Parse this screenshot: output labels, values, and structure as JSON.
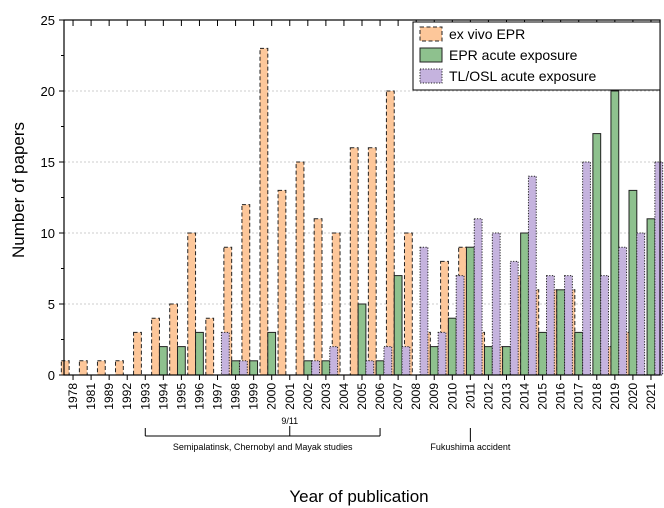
{
  "chart_data": {
    "type": "bar",
    "xlabel": "Year of publication",
    "ylabel": "Number of papers",
    "ylim": [
      0,
      25
    ],
    "yticks": [
      0,
      5,
      10,
      15,
      20,
      25
    ],
    "grid": "horizontal dotted",
    "legend_position": "top-right",
    "categories": [
      "1978",
      "1981",
      "1989",
      "1992",
      "1993",
      "1994",
      "1995",
      "1996",
      "1997",
      "1998",
      "1999",
      "2000",
      "2001",
      "2002",
      "2003",
      "2004",
      "2005",
      "2006",
      "2007",
      "2008",
      "2009",
      "2010",
      "2011",
      "2012",
      "2013",
      "2014",
      "2015",
      "2016",
      "2017",
      "2018",
      "2019",
      "2020",
      "2021"
    ],
    "series": [
      {
        "name": "ex vivo EPR",
        "color": "#fdc79a",
        "border": "dashed",
        "values": [
          1,
          1,
          1,
          1,
          3,
          4,
          5,
          10,
          4,
          9,
          12,
          23,
          13,
          15,
          11,
          10,
          16,
          16,
          20,
          10,
          3,
          8,
          9,
          3,
          2,
          7,
          6,
          6,
          6,
          0,
          2,
          3,
          0
        ]
      },
      {
        "name": "EPR acute exposure",
        "color": "#8ec18e",
        "border": "solid",
        "values": [
          0,
          0,
          0,
          0,
          0,
          2,
          2,
          3,
          0,
          1,
          1,
          3,
          0,
          1,
          1,
          0,
          5,
          1,
          7,
          0,
          2,
          4,
          9,
          2,
          2,
          10,
          3,
          6,
          3,
          17,
          20,
          13,
          11
        ]
      },
      {
        "name": "TL/OSL acute exposure",
        "color": "#c5b3de",
        "border": "dotted",
        "values": [
          0,
          0,
          0,
          0,
          0,
          0,
          0,
          0,
          3,
          1,
          0,
          0,
          0,
          1,
          2,
          0,
          1,
          2,
          2,
          9,
          3,
          7,
          11,
          10,
          8,
          14,
          7,
          7,
          15,
          7,
          9,
          10,
          15
        ]
      }
    ],
    "annotations": [
      {
        "text": "9/11",
        "at": "2001"
      },
      {
        "text": "Semipalatinsk, Chernobyl and Mayak studies",
        "from": "1993",
        "to": "2006"
      },
      {
        "text": "Fukushima accident",
        "at": "2011"
      }
    ]
  }
}
